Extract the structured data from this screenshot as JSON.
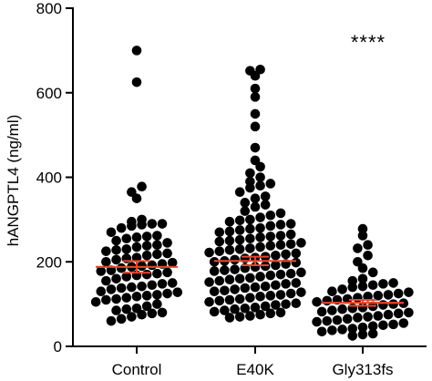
{
  "chart_data": {
    "type": "scatter",
    "ylabel": "hANGPTL4 (ng/ml)",
    "ylim": [
      0,
      800
    ],
    "yticks": [
      0,
      200,
      400,
      600,
      800
    ],
    "categories": [
      "Control",
      "E40K",
      "Gly313fs"
    ],
    "annotations": [
      {
        "category": "Gly313fs",
        "text": "****",
        "y": 720
      }
    ],
    "colors": {
      "points": "#000000",
      "summary": "#e8452c"
    },
    "series": [
      {
        "category": "Control",
        "mean": 188,
        "sem": [
          174,
          202
        ],
        "values": [
          700,
          625,
          378,
          365,
          350,
          300,
          295,
          290,
          290,
          288,
          285,
          280,
          270,
          262,
          260,
          258,
          255,
          250,
          245,
          240,
          238,
          235,
          230,
          228,
          225,
          220,
          218,
          215,
          210,
          208,
          205,
          200,
          198,
          195,
          192,
          190,
          188,
          185,
          180,
          178,
          175,
          172,
          170,
          168,
          165,
          160,
          155,
          150,
          148,
          145,
          142,
          140,
          138,
          135,
          130,
          128,
          125,
          122,
          120,
          118,
          115,
          112,
          110,
          105,
          100,
          95,
          90,
          88,
          85,
          80,
          78,
          75,
          70,
          65,
          60
        ]
      },
      {
        "category": "E40K",
        "mean": 202,
        "sem": [
          192,
          212
        ],
        "values": [
          655,
          652,
          640,
          610,
          590,
          550,
          520,
          470,
          440,
          425,
          410,
          400,
          390,
          385,
          380,
          375,
          365,
          355,
          350,
          340,
          335,
          330,
          320,
          315,
          310,
          305,
          300,
          298,
          295,
          290,
          288,
          285,
          280,
          278,
          275,
          272,
          270,
          265,
          262,
          260,
          258,
          255,
          252,
          250,
          248,
          245,
          242,
          240,
          238,
          235,
          232,
          230,
          228,
          225,
          222,
          220,
          218,
          215,
          212,
          210,
          208,
          205,
          202,
          200,
          198,
          195,
          192,
          190,
          188,
          185,
          182,
          180,
          178,
          175,
          172,
          170,
          168,
          165,
          162,
          160,
          158,
          155,
          152,
          150,
          148,
          145,
          142,
          140,
          138,
          135,
          132,
          130,
          128,
          125,
          122,
          120,
          118,
          115,
          112,
          110,
          108,
          105,
          102,
          100,
          98,
          95,
          92,
          90,
          88,
          85,
          82,
          80,
          78,
          75,
          72,
          70,
          68
        ]
      },
      {
        "category": "Gly313fs",
        "mean": 103,
        "sem": [
          96,
          110
        ],
        "values": [
          278,
          262,
          240,
          232,
          215,
          200,
          185,
          175,
          160,
          155,
          150,
          148,
          145,
          142,
          140,
          135,
          130,
          128,
          125,
          122,
          120,
          118,
          115,
          112,
          110,
          108,
          105,
          102,
          100,
          98,
          95,
          92,
          90,
          88,
          85,
          82,
          80,
          78,
          75,
          72,
          70,
          68,
          65,
          62,
          60,
          58,
          55,
          52,
          50,
          48,
          45,
          42,
          40,
          38,
          35,
          30,
          28,
          25
        ]
      }
    ]
  }
}
